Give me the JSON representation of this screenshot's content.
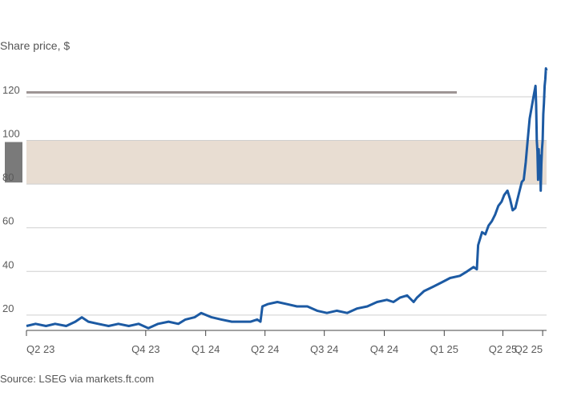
{
  "chart_data": {
    "type": "line",
    "ylabel": "Share price, $",
    "source": "Source: LSEG via markets.ft.com",
    "ylim": [
      13,
      135
    ],
    "yticks": [
      20,
      40,
      60,
      80,
      100,
      120
    ],
    "grid": true,
    "highlight_band": {
      "from": 80,
      "to": 100,
      "color": "#e8ddd2"
    },
    "reference_line": {
      "value": 122,
      "color": "#9d9594"
    },
    "xticks": [
      {
        "label": "Q2 23",
        "date": "2023-04-01"
      },
      {
        "label": "Q4 23",
        "date": "2023-10-01"
      },
      {
        "label": "Q1 24",
        "date": "2024-01-01"
      },
      {
        "label": "Q2 24",
        "date": "2024-04-01"
      },
      {
        "label": "Q3 24",
        "date": "2024-07-01"
      },
      {
        "label": "Q4 24",
        "date": "2024-10-01"
      },
      {
        "label": "Q1 25",
        "date": "2025-01-01"
      },
      {
        "label": "Q2 25",
        "date": "2025-04-01"
      },
      {
        "label": "Q2 25",
        "date": "2025-06-01"
      }
    ],
    "xlim": [
      "2023-04-01",
      "2025-06-07"
    ],
    "series": [
      {
        "color": "#1c5aa3",
        "points": [
          [
            "2023-04-01",
            15
          ],
          [
            "2023-04-15",
            16
          ],
          [
            "2023-05-01",
            15
          ],
          [
            "2023-05-15",
            16
          ],
          [
            "2023-06-01",
            15
          ],
          [
            "2023-06-15",
            17
          ],
          [
            "2023-06-25",
            19
          ],
          [
            "2023-07-05",
            17
          ],
          [
            "2023-07-20",
            16
          ],
          [
            "2023-08-05",
            15
          ],
          [
            "2023-08-20",
            16
          ],
          [
            "2023-09-05",
            15
          ],
          [
            "2023-09-20",
            16
          ],
          [
            "2023-10-05",
            14
          ],
          [
            "2023-10-20",
            16
          ],
          [
            "2023-11-05",
            17
          ],
          [
            "2023-11-20",
            16
          ],
          [
            "2023-12-01",
            18
          ],
          [
            "2023-12-15",
            19
          ],
          [
            "2023-12-25",
            21
          ],
          [
            "2024-01-10",
            19
          ],
          [
            "2024-01-25",
            18
          ],
          [
            "2024-02-10",
            17
          ],
          [
            "2024-02-25",
            17
          ],
          [
            "2024-03-10",
            17
          ],
          [
            "2024-03-20",
            18
          ],
          [
            "2024-03-25",
            17
          ],
          [
            "2024-03-28",
            24
          ],
          [
            "2024-04-05",
            25
          ],
          [
            "2024-04-20",
            26
          ],
          [
            "2024-05-05",
            25
          ],
          [
            "2024-05-20",
            24
          ],
          [
            "2024-06-05",
            24
          ],
          [
            "2024-06-20",
            22
          ],
          [
            "2024-07-05",
            21
          ],
          [
            "2024-07-20",
            22
          ],
          [
            "2024-08-05",
            21
          ],
          [
            "2024-08-20",
            23
          ],
          [
            "2024-09-05",
            24
          ],
          [
            "2024-09-20",
            26
          ],
          [
            "2024-10-05",
            27
          ],
          [
            "2024-10-15",
            26
          ],
          [
            "2024-10-25",
            28
          ],
          [
            "2024-11-05",
            29
          ],
          [
            "2024-11-15",
            26
          ],
          [
            "2024-11-20",
            28
          ],
          [
            "2024-12-01",
            31
          ],
          [
            "2024-12-15",
            33
          ],
          [
            "2024-12-28",
            35
          ],
          [
            "2025-01-10",
            37
          ],
          [
            "2025-01-25",
            38
          ],
          [
            "2025-02-05",
            40
          ],
          [
            "2025-02-15",
            42
          ],
          [
            "2025-02-20",
            41
          ],
          [
            "2025-02-22",
            52
          ],
          [
            "2025-02-28",
            58
          ],
          [
            "2025-03-05",
            57
          ],
          [
            "2025-03-10",
            61
          ],
          [
            "2025-03-15",
            63
          ],
          [
            "2025-03-20",
            66
          ],
          [
            "2025-03-25",
            70
          ],
          [
            "2025-03-30",
            72
          ],
          [
            "2025-04-03",
            75
          ],
          [
            "2025-04-08",
            77
          ],
          [
            "2025-04-12",
            73
          ],
          [
            "2025-04-16",
            68
          ],
          [
            "2025-04-20",
            69
          ],
          [
            "2025-04-25",
            75
          ],
          [
            "2025-04-30",
            81
          ],
          [
            "2025-05-03",
            82
          ],
          [
            "2025-05-06",
            90
          ],
          [
            "2025-05-09",
            100
          ],
          [
            "2025-05-12",
            110
          ],
          [
            "2025-05-15",
            115
          ],
          [
            "2025-05-18",
            120
          ],
          [
            "2025-05-21",
            125
          ],
          [
            "2025-05-22",
            116
          ],
          [
            "2025-05-23",
            100
          ],
          [
            "2025-05-24",
            95
          ],
          [
            "2025-05-25",
            82
          ],
          [
            "2025-05-26",
            96
          ],
          [
            "2025-05-27",
            84
          ],
          [
            "2025-05-28",
            93
          ],
          [
            "2025-05-29",
            77
          ],
          [
            "2025-05-30",
            89
          ],
          [
            "2025-05-31",
            96
          ],
          [
            "2025-06-01",
            100
          ],
          [
            "2025-06-02",
            112
          ],
          [
            "2025-06-03",
            117
          ],
          [
            "2025-06-04",
            125
          ],
          [
            "2025-06-05",
            128
          ],
          [
            "2025-06-06",
            133
          ],
          [
            "2025-06-07",
            132
          ]
        ]
      }
    ]
  }
}
